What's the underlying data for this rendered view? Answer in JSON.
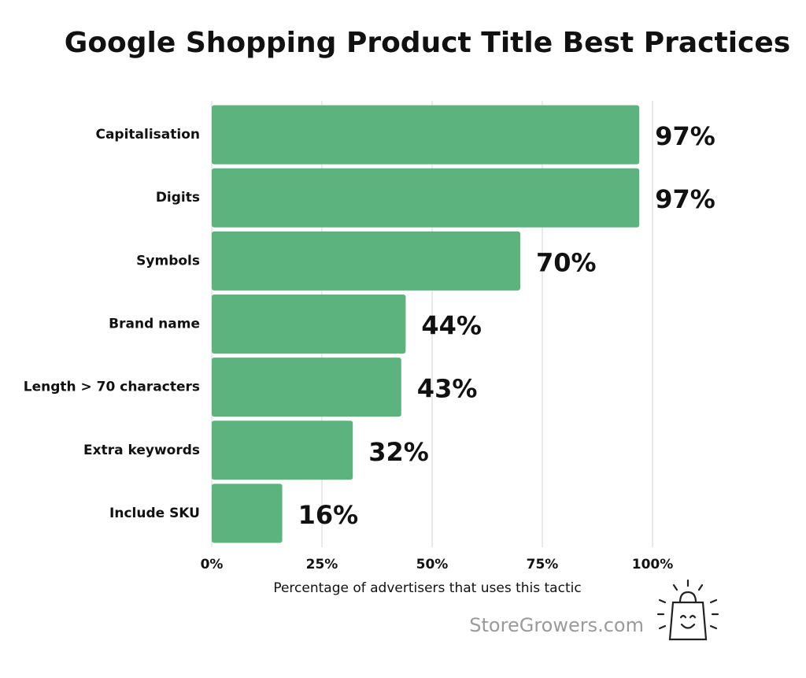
{
  "chart_data": {
    "type": "bar",
    "orientation": "horizontal",
    "title": "Google Shopping Product Title Best Practices",
    "categories": [
      "Capitalisation",
      "Digits",
      "Symbols",
      "Brand name",
      "Length > 70 characters",
      "Extra keywords",
      "Include SKU"
    ],
    "values": [
      97,
      97,
      70,
      44,
      43,
      32,
      16
    ],
    "value_labels": [
      "97%",
      "97%",
      "70%",
      "44%",
      "43%",
      "32%",
      "16%"
    ],
    "color": "#5db37e",
    "xlim": [
      0,
      100
    ],
    "xticks": [
      {
        "value": 0,
        "label": "0%"
      },
      {
        "value": 25,
        "label": "25%"
      },
      {
        "value": 50,
        "label": "50%"
      },
      {
        "value": 75,
        "label": "75%"
      },
      {
        "value": 100,
        "label": "100%"
      }
    ],
    "xlabel": "Percentage of advertisers that uses this tactic",
    "grid": true,
    "watermark": "StoreGrowers.com"
  }
}
